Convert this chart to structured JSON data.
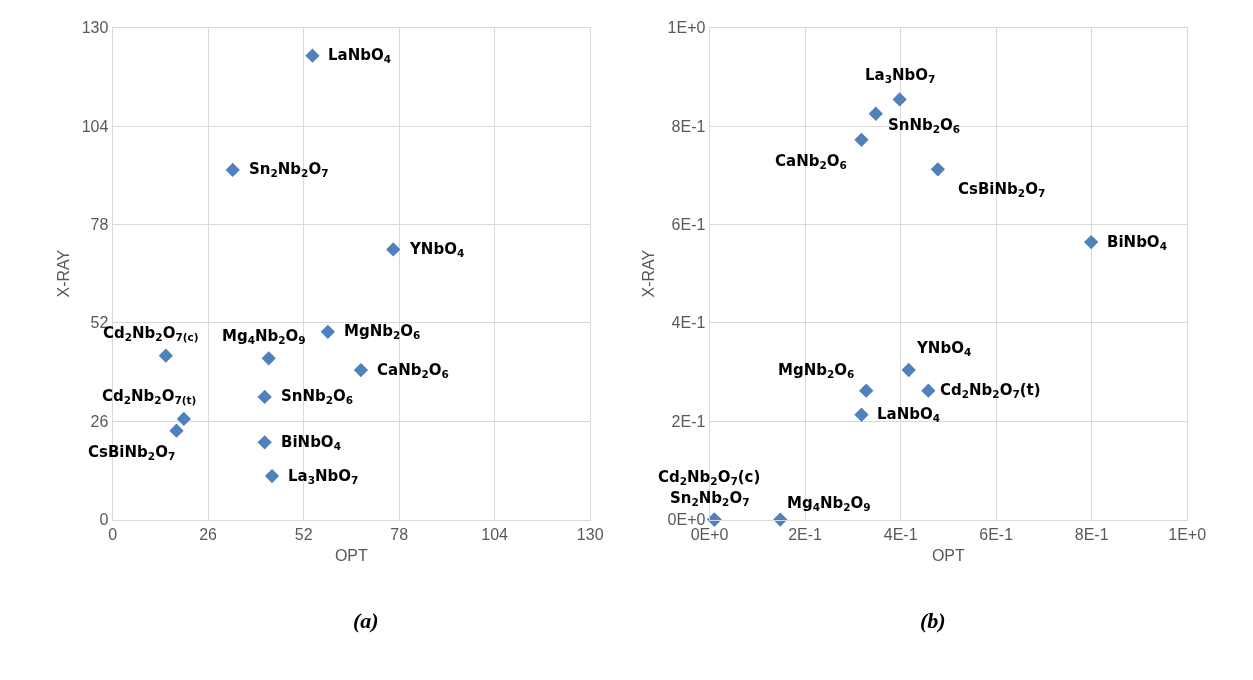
{
  "chart_data": [
    {
      "type": "scatter",
      "xlabel": "OPT",
      "ylabel": "X-RAY",
      "color": "#4f81bd",
      "marker": "diamond",
      "grid": true,
      "x": [
        54.4,
        32.7,
        76.4,
        58.6,
        42.5,
        14.5,
        67.6,
        41.4,
        19.4,
        17.4,
        41.4,
        43.4
      ],
      "values": [
        122.6,
        92.4,
        71.4,
        49.6,
        42.6,
        43.3,
        39.5,
        32.4,
        26.6,
        23.5,
        20.4,
        11.5
      ],
      "xlim": [
        0,
        130
      ],
      "ylim": [
        0,
        130
      ],
      "xticks": [
        0,
        26,
        52,
        78,
        104,
        130
      ],
      "yticks": [
        0,
        26,
        52,
        78,
        104,
        130
      ],
      "annotations": [
        {
          "text": "LaNbO$_{4}$",
          "x": 54.4,
          "y": 122.6
        },
        {
          "text": "Sn$_{2}$Nb$_{2}$O$_{7}$",
          "x": 32.7,
          "y": 92.4
        },
        {
          "text": "YNbO$_{4}$",
          "x": 76.4,
          "y": 71.4
        },
        {
          "text": "MgNb$_{2}$O$_{6}$",
          "x": 58.6,
          "y": 49.6
        },
        {
          "text": "Mg$_{4}$Nb$_{2}$O$_{9}$",
          "x": 42.5,
          "y": 42.6
        },
        {
          "text": "Cd$_{2}$Nb$_{2}$O$_{7(c)}$",
          "x": 14.5,
          "y": 43.3
        },
        {
          "text": "CaNb$_{2}$O$_{6}$",
          "x": 67.6,
          "y": 39.5
        },
        {
          "text": "SnNb$_{2}$O$_{6}$",
          "x": 41.4,
          "y": 32.4
        },
        {
          "text": "Cd$_{2}$Nb$_{2}$O$_{7(t)}$",
          "x": 19.4,
          "y": 26.6
        },
        {
          "text": "CsBiNb$_{2}$O$_{7}$",
          "x": 17.4,
          "y": 23.5
        },
        {
          "text": "BiNbO$_{4}$",
          "x": 41.4,
          "y": 20.4
        },
        {
          "text": "La$_{3}$NbO$_{7}$",
          "x": 43.4,
          "y": 11.5
        },
        "(a)"
      ]
    },
    {
      "type": "scatter",
      "xlabel": "OPT",
      "ylabel": "X-RAY",
      "color": "#4f81bd",
      "marker": "diamond",
      "grid": true,
      "x": [
        0.398,
        0.348,
        0.318,
        0.478,
        0.799,
        0.417,
        0.328,
        0.458,
        0.318,
        0.01,
        0.01,
        0.148
      ],
      "values": [
        0.854,
        0.825,
        0.772,
        0.712,
        0.564,
        0.304,
        0.262,
        0.262,
        0.213,
        0,
        0,
        0
      ],
      "xlim": [
        0,
        1
      ],
      "ylim": [
        0,
        1
      ],
      "xticks": [
        {
          "value": 0,
          "label": "0E+0"
        },
        {
          "value": 0.2,
          "label": "2E-1"
        },
        {
          "value": 0.4,
          "label": "4E-1"
        },
        {
          "value": 0.6,
          "label": "6E-1"
        },
        {
          "value": 0.8,
          "label": "8E-1"
        },
        {
          "value": 1,
          "label": "1E+0"
        }
      ],
      "yticks": [
        {
          "value": 0,
          "label": "0E+0"
        },
        {
          "value": 0.2,
          "label": "2E-1"
        },
        {
          "value": 0.4,
          "label": "4E-1"
        },
        {
          "value": 0.6,
          "label": "6E-1"
        },
        {
          "value": 0.8,
          "label": "8E-1"
        },
        {
          "value": 1,
          "label": "1E+0"
        }
      ],
      "annotations": [
        {
          "text": "La$_{3}$NbO$_{7}$",
          "x": 0.398,
          "y": 0.854
        },
        {
          "text": "SnNb$_{2}$O$_{6}$",
          "x": 0.348,
          "y": 0.825
        },
        {
          "text": "CaNb$_{2}$O$_{6}$",
          "x": 0.318,
          "y": 0.772
        },
        {
          "text": "CsBiNb$_{2}$O$_{7}$",
          "x": 0.478,
          "y": 0.712
        },
        {
          "text": "BiNbO$_{4}$",
          "x": 0.799,
          "y": 0.564
        },
        {
          "text": "YNbO$_{4}$",
          "x": 0.417,
          "y": 0.304
        },
        {
          "text": "MgNb$_{2}$O$_{6}$",
          "x": 0.328,
          "y": 0.262
        },
        {
          "text": "Cd$_{2}$Nb$_{2}$O$_{7}$(t)",
          "x": 0.458,
          "y": 0.262
        },
        {
          "text": "LaNbO$_{4}$",
          "x": 0.318,
          "y": 0.213
        },
        {
          "text": "Cd$_{2}$Nb$_{2}$O$_{7}$(c)",
          "x": 0.01,
          "y": 0
        },
        {
          "text": "Sn$_{2}$Nb$_{2}$O$_{7}$",
          "x": 0.01,
          "y": 0
        },
        {
          "text": "Mg$_{4}$Nb$_{2}$O$_{9}$",
          "x": 0.148,
          "y": 0
        },
        "(b)"
      ]
    }
  ]
}
